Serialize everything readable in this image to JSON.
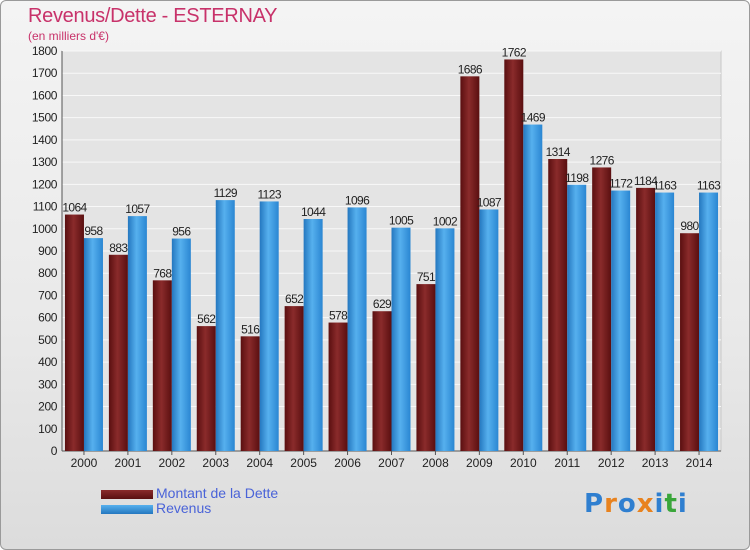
{
  "chart_data": {
    "type": "bar",
    "title": "Revenus/Dette - ESTERNAY",
    "subtitle": "(en milliers d'€)",
    "categories": [
      "2000",
      "2001",
      "2002",
      "2003",
      "2004",
      "2005",
      "2006",
      "2007",
      "2008",
      "2009",
      "2010",
      "2011",
      "2012",
      "2013",
      "2014"
    ],
    "series": [
      {
        "name": "Montant de la Dette",
        "color": "#7a1c1c",
        "values": [
          1064,
          883,
          768,
          562,
          516,
          652,
          578,
          629,
          751,
          1686,
          1762,
          1314,
          1276,
          1184,
          980
        ]
      },
      {
        "name": "Revenus",
        "color": "#3d9be0",
        "values": [
          958,
          1057,
          956,
          1129,
          1123,
          1044,
          1096,
          1005,
          1002,
          1087,
          1469,
          1198,
          1172,
          1163,
          1163
        ]
      }
    ],
    "ylim": [
      0,
      1800
    ],
    "yticks": [
      0,
      100,
      200,
      300,
      400,
      500,
      600,
      700,
      800,
      900,
      1000,
      1100,
      1200,
      1300,
      1400,
      1500,
      1600,
      1700,
      1800
    ],
    "grid": true,
    "legend_position": "bottom-left"
  },
  "logo": {
    "letters": [
      "P",
      "r",
      "o",
      "x",
      "i",
      "t",
      "i"
    ],
    "colors": [
      "#2f7fd0",
      "#e8821e",
      "#2f7fd0",
      "#e8821e",
      "#2f7fd0",
      "#3aa63a",
      "#2f7fd0"
    ]
  }
}
